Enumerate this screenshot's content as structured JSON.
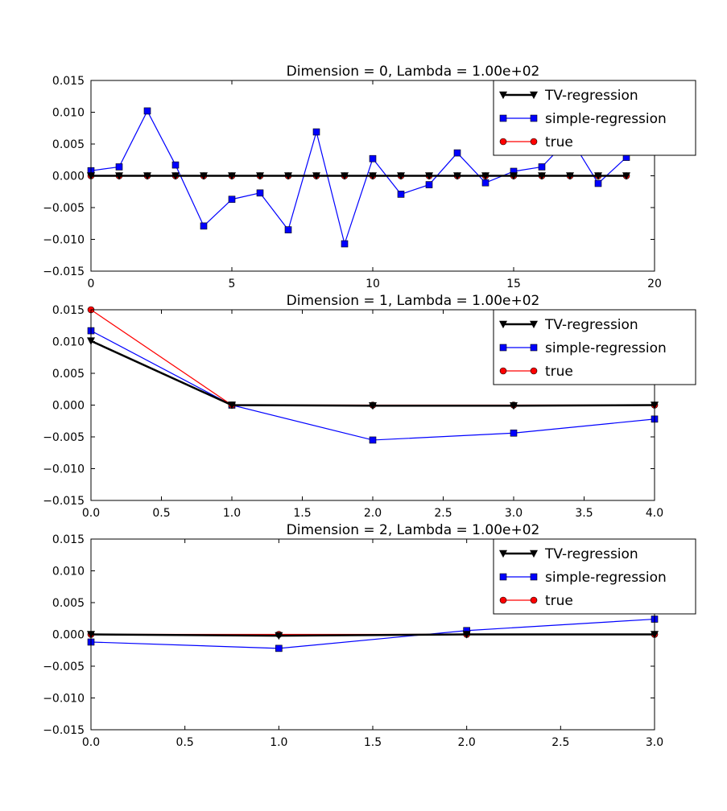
{
  "colors": {
    "tv": "#000000",
    "simple": "#0000ff",
    "true": "#ff0000",
    "background": "#ffffff"
  },
  "chart_data": [
    {
      "type": "line",
      "title": "Dimension = 0, Lambda = 1.00e+02",
      "xlim": [
        0,
        20
      ],
      "ylim": [
        -0.015,
        0.015
      ],
      "xticks": [
        "0",
        "5",
        "10",
        "15",
        "20"
      ],
      "yticks": [
        "0.015",
        "0.010",
        "0.005",
        "0.000",
        "−0.005",
        "−0.010",
        "−0.015"
      ],
      "legend_position": "upper-right",
      "x": [
        0,
        1,
        2,
        3,
        4,
        5,
        6,
        7,
        8,
        9,
        10,
        11,
        12,
        13,
        14,
        15,
        16,
        17,
        18,
        19
      ],
      "series": [
        {
          "name": "TV-regression",
          "marker": "triangle-down",
          "values": [
            0,
            0,
            0,
            0,
            0,
            0,
            0,
            0,
            0,
            0,
            0,
            0,
            0,
            0,
            0,
            0,
            0,
            0,
            0,
            0
          ]
        },
        {
          "name": "simple-regression",
          "marker": "square",
          "values": [
            0.0008,
            0.0014,
            0.0102,
            0.0017,
            -0.0079,
            -0.0037,
            -0.0027,
            -0.0085,
            0.0069,
            -0.0107,
            0.0027,
            -0.0029,
            -0.0014,
            0.0036,
            -0.0011,
            0.0007,
            0.0014,
            0.006,
            -0.0012,
            0.0029
          ]
        },
        {
          "name": "true",
          "marker": "circle",
          "values": [
            0,
            0,
            0,
            0,
            0,
            0,
            0,
            0,
            0,
            0,
            0,
            0,
            0,
            0,
            0,
            0,
            0,
            0,
            0,
            0
          ]
        }
      ]
    },
    {
      "type": "line",
      "title": "Dimension = 1, Lambda = 1.00e+02",
      "xlim": [
        0,
        4
      ],
      "ylim": [
        -0.015,
        0.015
      ],
      "xticks": [
        "0.0",
        "0.5",
        "1.0",
        "1.5",
        "2.0",
        "2.5",
        "3.0",
        "3.5",
        "4.0"
      ],
      "yticks": [
        "0.015",
        "0.010",
        "0.005",
        "0.000",
        "−0.005",
        "−0.010",
        "−0.015"
      ],
      "legend_position": "upper-right",
      "x": [
        0,
        1,
        2,
        3,
        4
      ],
      "series": [
        {
          "name": "TV-regression",
          "marker": "triangle-down",
          "values": [
            0.0101,
            0.0,
            -0.0001,
            -0.0001,
            0.0
          ]
        },
        {
          "name": "simple-regression",
          "marker": "square",
          "values": [
            0.0117,
            0.0,
            -0.0055,
            -0.0044,
            -0.0022
          ]
        },
        {
          "name": "true",
          "marker": "circle",
          "values": [
            0.015,
            0.0,
            0.0,
            0.0,
            0.0
          ]
        }
      ]
    },
    {
      "type": "line",
      "title": "Dimension = 2, Lambda = 1.00e+02",
      "xlim": [
        0,
        3
      ],
      "ylim": [
        -0.015,
        0.015
      ],
      "xticks": [
        "0.0",
        "0.5",
        "1.0",
        "1.5",
        "2.0",
        "2.5",
        "3.0"
      ],
      "yticks": [
        "0.015",
        "0.010",
        "0.005",
        "0.000",
        "−0.005",
        "−0.010",
        "−0.015"
      ],
      "legend_position": "upper-right",
      "x": [
        0,
        1,
        2,
        3
      ],
      "series": [
        {
          "name": "TV-regression",
          "marker": "triangle-down",
          "values": [
            0.0,
            -0.0002,
            0.0,
            0.0
          ]
        },
        {
          "name": "simple-regression",
          "marker": "square",
          "values": [
            -0.0012,
            -0.0022,
            0.0006,
            0.0024
          ]
        },
        {
          "name": "true",
          "marker": "circle",
          "values": [
            0.0,
            0.0,
            0.0,
            0.0
          ]
        }
      ]
    }
  ]
}
